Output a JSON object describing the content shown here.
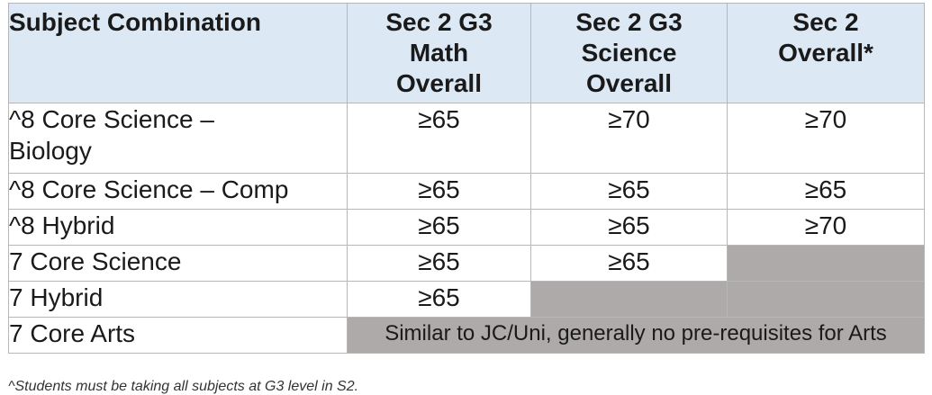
{
  "table": {
    "headers": [
      "Subject Combination",
      "Sec 2 G3 Math Overall",
      "Sec 2 G3 Science Overall",
      "Sec 2 Overall*"
    ],
    "header_lines": [
      [
        "Subject Combination"
      ],
      [
        "Sec 2 G3",
        "Math",
        "Overall"
      ],
      [
        "Sec 2 G3",
        "Science",
        "Overall"
      ],
      [
        "Sec 2",
        "Overall*"
      ]
    ],
    "rows": [
      {
        "label_lines": [
          "^8 Core Science –",
          "Biology"
        ],
        "math": "≥65",
        "science": "≥70",
        "overall": "≥70"
      },
      {
        "label_lines": [
          "^8 Core Science – Comp"
        ],
        "math": "≥65",
        "science": "≥65",
        "overall": "≥65"
      },
      {
        "label_lines": [
          "^8 Hybrid"
        ],
        "math": "≥65",
        "science": "≥65",
        "overall": "≥70"
      },
      {
        "label_lines": [
          "7 Core Science"
        ],
        "math": "≥65",
        "science": "≥65",
        "overall": ""
      },
      {
        "label_lines": [
          "7 Hybrid"
        ],
        "math": "≥65",
        "science": "",
        "overall": ""
      },
      {
        "label_lines": [
          "7 Core Arts"
        ],
        "merged_note": "Similar to JC/Uni, generally no pre-requisites for Arts"
      }
    ]
  },
  "footnote": "^Students must be taking all subjects at G3 level in S2.",
  "colors": {
    "header_bg": "#dde8f5",
    "empty_cell_bg": "#aeaaaa",
    "border": "#b7b7b7"
  }
}
